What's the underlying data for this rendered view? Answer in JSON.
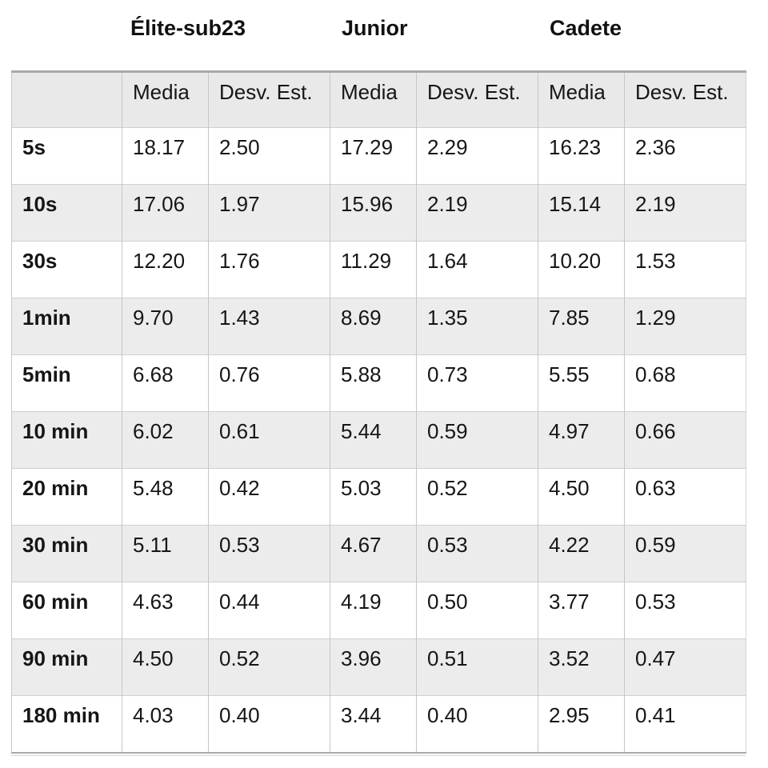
{
  "group_headers": [
    {
      "label": "Élite-sub23"
    },
    {
      "label": "Junior"
    },
    {
      "label": "Cadete"
    }
  ],
  "table": {
    "corner_label": "",
    "sub_headers": [
      "Media",
      "Desv. Est."
    ],
    "rows": [
      {
        "label": "5s",
        "values": [
          "18.17",
          "2.50",
          "17.29",
          "2.29",
          "16.23",
          "2.36"
        ]
      },
      {
        "label": "10s",
        "values": [
          "17.06",
          "1.97",
          "15.96",
          "2.19",
          "15.14",
          "2.19"
        ]
      },
      {
        "label": "30s",
        "values": [
          "12.20",
          "1.76",
          "11.29",
          "1.64",
          "10.20",
          "1.53"
        ]
      },
      {
        "label": "1min",
        "values": [
          "9.70",
          "1.43",
          "8.69",
          "1.35",
          "7.85",
          "1.29"
        ]
      },
      {
        "label": "5min",
        "values": [
          "6.68",
          "0.76",
          "5.88",
          "0.73",
          "5.55",
          "0.68"
        ]
      },
      {
        "label": "10 min",
        "values": [
          "6.02",
          "0.61",
          "5.44",
          "0.59",
          "4.97",
          "0.66"
        ]
      },
      {
        "label": "20 min",
        "values": [
          "5.48",
          "0.42",
          "5.03",
          "0.52",
          "4.50",
          "0.63"
        ]
      },
      {
        "label": "30 min",
        "values": [
          "5.11",
          "0.53",
          "4.67",
          "0.53",
          "4.22",
          "0.59"
        ]
      },
      {
        "label": "60 min",
        "values": [
          "4.63",
          "0.44",
          "4.19",
          "0.50",
          "3.77",
          "0.53"
        ]
      },
      {
        "label": "90 min",
        "values": [
          "4.50",
          "0.52",
          "3.96",
          "0.51",
          "3.52",
          "0.47"
        ]
      },
      {
        "label": "180 min",
        "values": [
          "4.03",
          "0.40",
          "3.44",
          "0.40",
          "2.95",
          "0.41"
        ]
      }
    ]
  },
  "colors": {
    "stripe_row_bg": "#ececec",
    "header_row_bg": "#e9e9e9",
    "outer_border": "#a9a9a9",
    "inner_border": "#c6c6c6",
    "text": "#161616"
  }
}
